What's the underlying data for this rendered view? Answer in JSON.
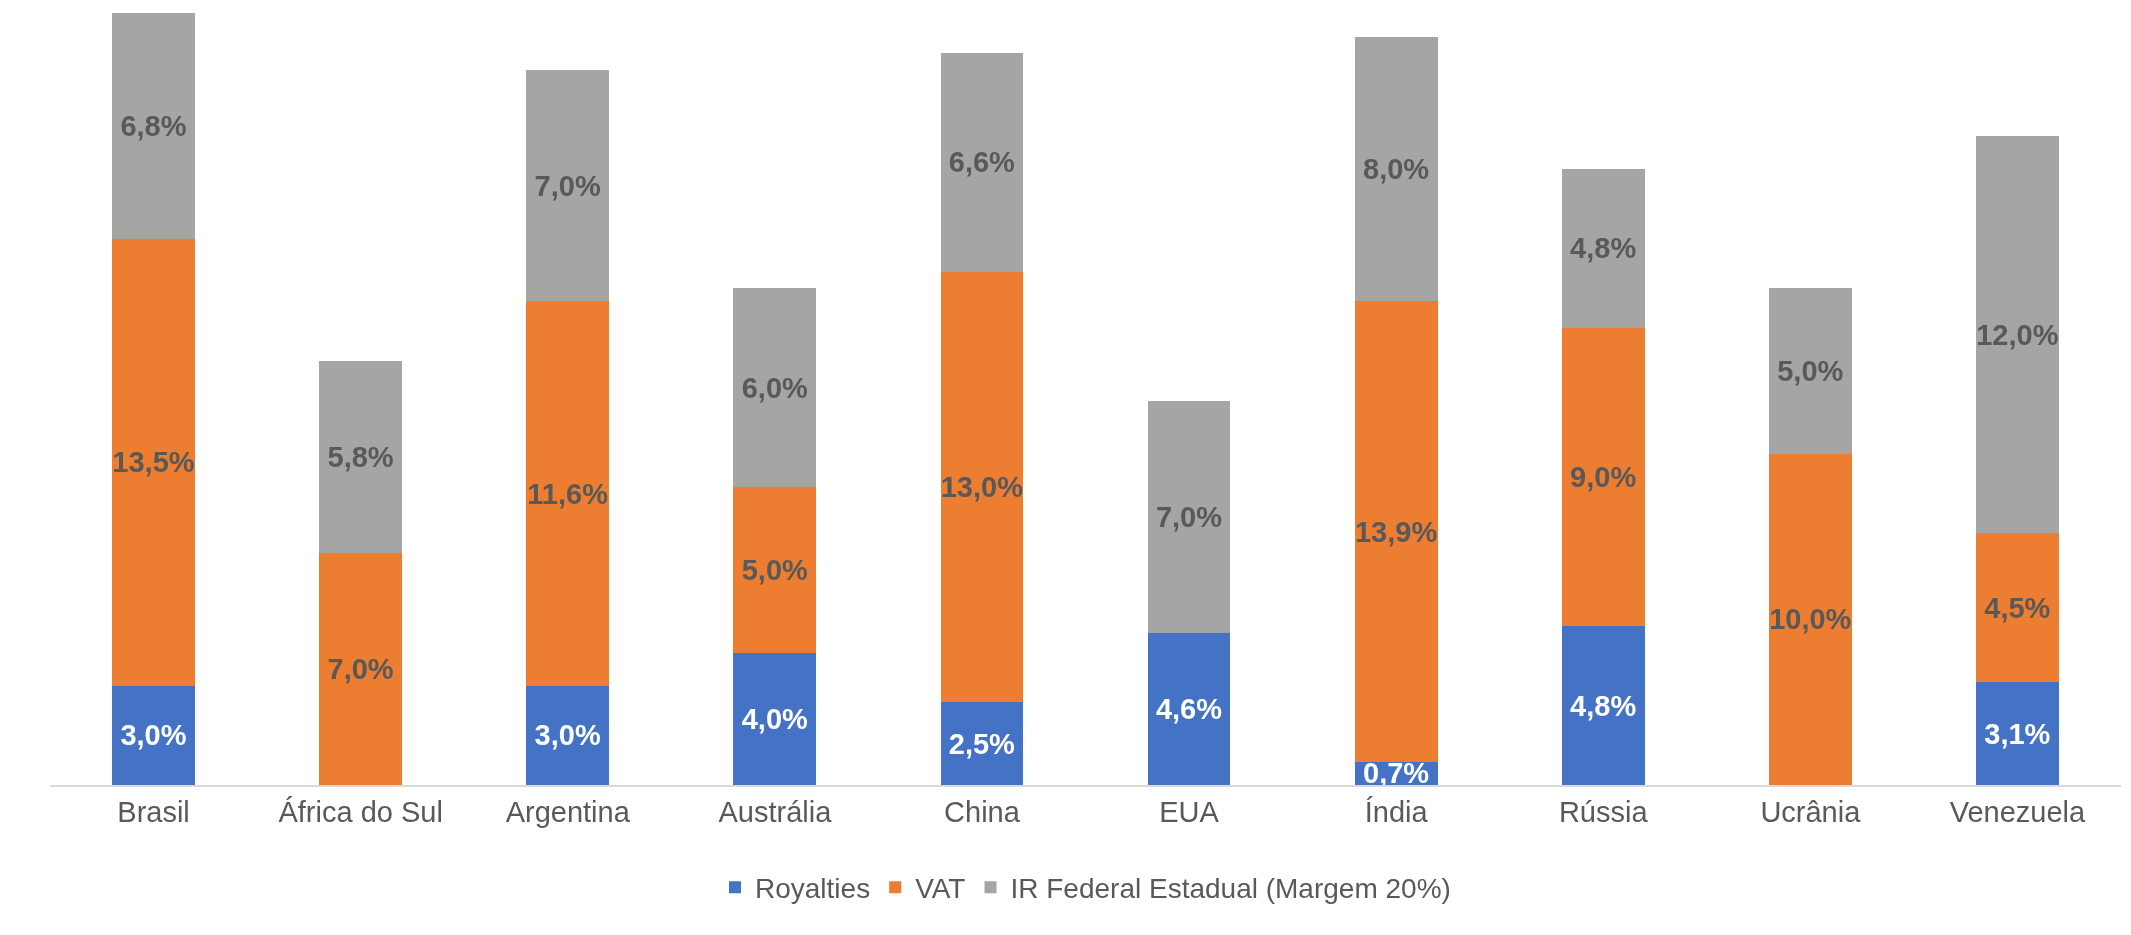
{
  "chart_data": {
    "type": "bar",
    "stacked": true,
    "categories": [
      "Brasil",
      "África do Sul",
      "Argentina",
      "Austrália",
      "China",
      "EUA",
      "Índia",
      "Rússia",
      "Ucrânia",
      "Venezuela"
    ],
    "series": [
      {
        "name": "Royalties",
        "color": "#4472c4",
        "values": [
          3.0,
          null,
          3.0,
          4.0,
          2.5,
          4.6,
          0.7,
          4.8,
          null,
          3.1
        ],
        "value_labels": [
          "3,0%",
          null,
          "3,0%",
          "4,0%",
          "2,5%",
          "4,6%",
          "0,7%",
          "4,8%",
          null,
          "3,1%"
        ]
      },
      {
        "name": "VAT",
        "color": "#ed7d31",
        "values": [
          13.5,
          7.0,
          11.6,
          5.0,
          13.0,
          null,
          13.9,
          9.0,
          10.0,
          4.5
        ],
        "value_labels": [
          "13,5%",
          "7,0%",
          "11,6%",
          "5,0%",
          "13,0%",
          null,
          "13,9%",
          "9,0%",
          "10,0%",
          "4,5%"
        ]
      },
      {
        "name": "IR Federal Estadual (Margem 20%)",
        "color": "#a5a5a5",
        "values": [
          6.8,
          5.8,
          7.0,
          6.0,
          6.6,
          7.0,
          8.0,
          4.8,
          5.0,
          12.0
        ],
        "value_labels": [
          "6,8%",
          "5,8%",
          "7,0%",
          "6,0%",
          "6,6%",
          "7,0%",
          "8,0%",
          "4,8%",
          "5,0%",
          "12,0%"
        ]
      }
    ],
    "ylim": [
      0,
      23.4
    ],
    "tick_labels": "x",
    "grid": false,
    "legend": "bottom"
  }
}
